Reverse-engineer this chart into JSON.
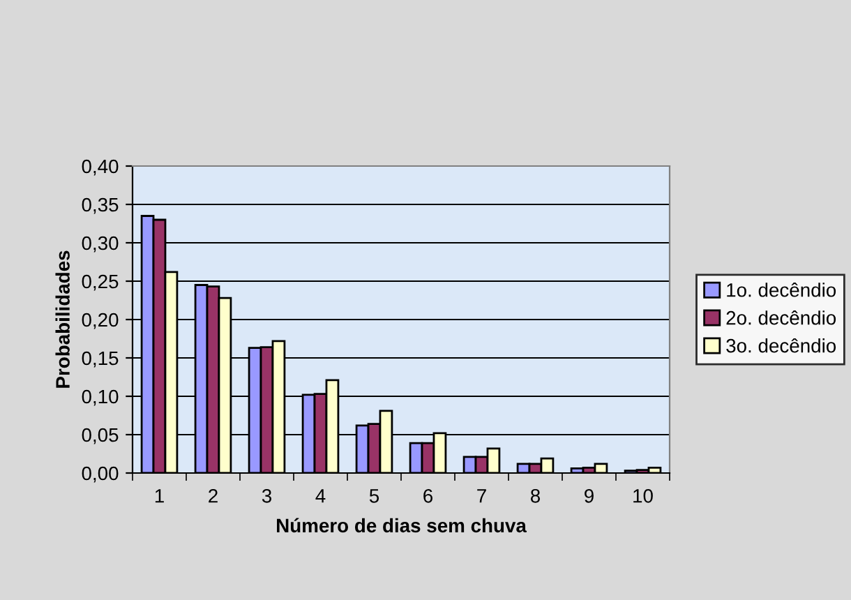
{
  "chart_data": {
    "type": "bar",
    "xlabel": "Número de dias sem chuva",
    "ylabel": "Probabilidades",
    "categories": [
      "1",
      "2",
      "3",
      "4",
      "5",
      "6",
      "7",
      "8",
      "9",
      "10"
    ],
    "series": [
      {
        "name": "1o. decêndio",
        "color": "#9999ff",
        "values": [
          0.335,
          0.245,
          0.163,
          0.102,
          0.062,
          0.039,
          0.021,
          0.012,
          0.006,
          0.003
        ]
      },
      {
        "name": "2o. decêndio",
        "color": "#993366",
        "values": [
          0.33,
          0.243,
          0.164,
          0.103,
          0.064,
          0.039,
          0.021,
          0.012,
          0.007,
          0.004
        ]
      },
      {
        "name": "3o. decêndio",
        "color": "#ffffcc",
        "values": [
          0.262,
          0.228,
          0.172,
          0.121,
          0.081,
          0.052,
          0.032,
          0.019,
          0.012,
          0.007
        ]
      }
    ],
    "ylim": [
      0,
      0.4
    ],
    "yticks": [
      {
        "value": 0,
        "label": "0,00"
      },
      {
        "value": 0.05,
        "label": "0,05"
      },
      {
        "value": 0.1,
        "label": "0,10"
      },
      {
        "value": 0.15,
        "label": "0,15"
      },
      {
        "value": 0.2,
        "label": "0,20"
      },
      {
        "value": 0.25,
        "label": "0,25"
      },
      {
        "value": 0.3,
        "label": "0,30"
      },
      {
        "value": 0.35,
        "label": "0,35"
      },
      {
        "value": 0.4,
        "label": "0,40"
      }
    ],
    "grid": "y",
    "legend": "right"
  }
}
